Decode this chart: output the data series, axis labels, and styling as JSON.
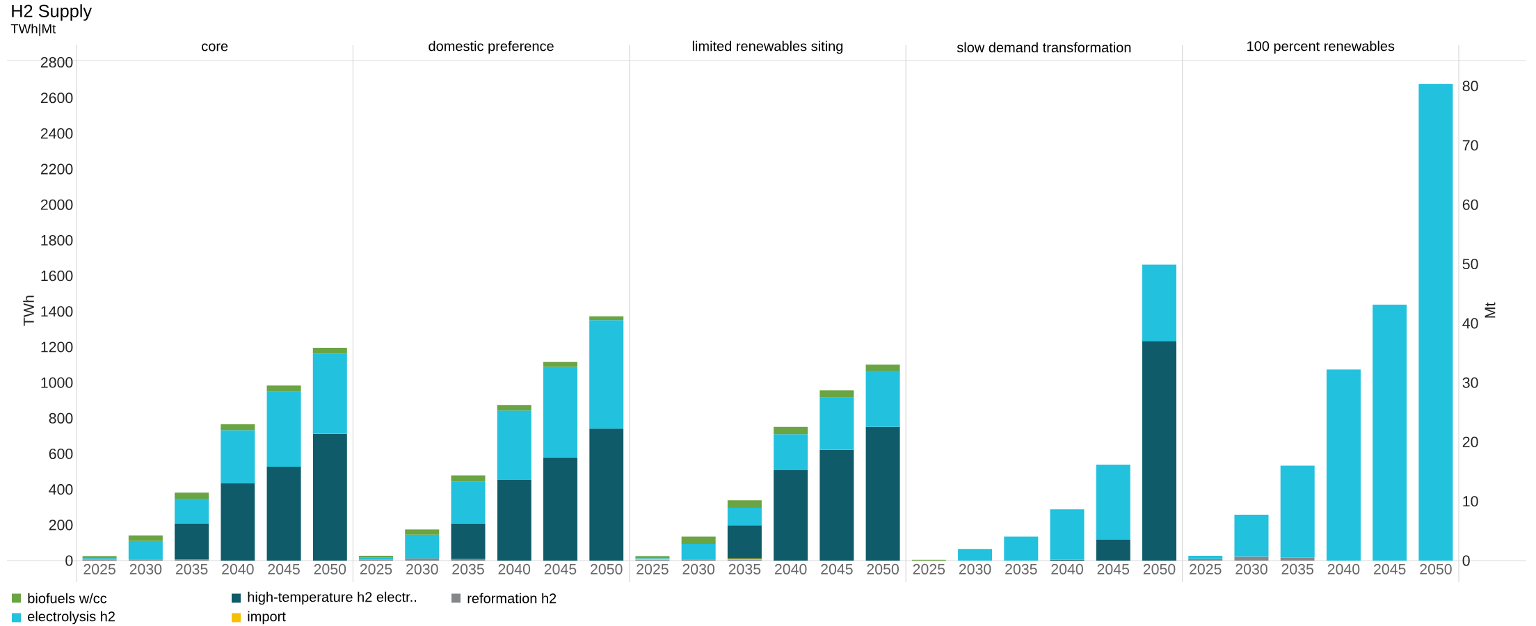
{
  "chart_data": [
    {
      "type": "bar",
      "stacked": true,
      "title": "core",
      "annotations": [
        "H2 Supply",
        "TWh|Mt"
      ],
      "ylabel": "TWh",
      "categories": [
        "2025",
        "2030",
        "2035",
        "2040",
        "2045",
        "2050"
      ],
      "ylim": [
        0,
        2810
      ],
      "yticks": [
        0,
        200,
        400,
        600,
        800,
        1000,
        1200,
        1400,
        1600,
        1800,
        2000,
        2200,
        2400,
        2600,
        2800
      ],
      "legend": "bottom",
      "series": [
        {
          "name": "reformation h2",
          "color": "#85878a",
          "values": [
            5,
            7,
            7,
            0,
            0,
            0
          ]
        },
        {
          "name": "import",
          "color": "#f5c000",
          "values": [
            0,
            0,
            0,
            0,
            0,
            0
          ]
        },
        {
          "name": "high-temperature h2 electr..",
          "color": "#0f5b69",
          "values": [
            0,
            0,
            200,
            436,
            528,
            712
          ]
        },
        {
          "name": "electrolysis h2",
          "color": "#22c1de",
          "values": [
            10,
            103,
            141,
            297,
            423,
            452
          ]
        },
        {
          "name": "biofuels w/cc",
          "color": "#6aa443",
          "values": [
            10,
            32,
            34,
            33,
            33,
            32
          ]
        }
      ]
    },
    {
      "type": "bar",
      "stacked": true,
      "title": "domestic preference",
      "categories": [
        "2025",
        "2030",
        "2035",
        "2040",
        "2045",
        "2050"
      ],
      "ylim": [
        0,
        2810
      ],
      "tick_labels": "x",
      "series": [
        {
          "color": "#85878a",
          "values": [
            5,
            13,
            9,
            0,
            0,
            0
          ]
        },
        {
          "color": "#f5c000",
          "values": [
            0,
            0,
            0,
            0,
            0,
            0
          ]
        },
        {
          "color": "#0f5b69",
          "values": [
            0,
            0,
            200,
            456,
            580,
            742
          ]
        },
        {
          "color": "#22c1de",
          "values": [
            12,
            133,
            236,
            387,
            508,
            609
          ]
        },
        {
          "color": "#6aa443",
          "values": [
            10,
            29,
            34,
            31,
            29,
            22
          ]
        }
      ]
    },
    {
      "type": "bar",
      "stacked": true,
      "title": "limited renewables siting",
      "categories": [
        "2025",
        "2030",
        "2035",
        "2040",
        "2045",
        "2050"
      ],
      "ylim": [
        0,
        2810
      ],
      "tick_labels": "x",
      "series": [
        {
          "color": "#85878a",
          "values": [
            5,
            7,
            4,
            0,
            0,
            0
          ]
        },
        {
          "color": "#f5c000",
          "values": [
            5,
            0,
            8,
            0,
            0,
            0
          ]
        },
        {
          "color": "#0f5b69",
          "values": [
            0,
            0,
            186,
            508,
            622,
            751
          ]
        },
        {
          "color": "#22c1de",
          "values": [
            5,
            87,
            99,
            202,
            293,
            316
          ]
        },
        {
          "color": "#6aa443",
          "values": [
            10,
            41,
            42,
            41,
            42,
            34
          ]
        }
      ]
    },
    {
      "type": "bar",
      "stacked": true,
      "title": "slow demand transformation",
      "categories": [
        "2025",
        "2030",
        "2035",
        "2040",
        "2045",
        "2050"
      ],
      "ylim": [
        0,
        2810
      ],
      "tick_labels": "x",
      "series": [
        {
          "color": "#85878a",
          "values": [
            0,
            0,
            0,
            0,
            0,
            0
          ]
        },
        {
          "color": "#f5c000",
          "values": [
            0,
            0,
            0,
            0,
            0,
            0
          ]
        },
        {
          "color": "#0f5b69",
          "values": [
            0,
            0,
            0,
            5,
            117,
            1234
          ]
        },
        {
          "color": "#22c1de",
          "values": [
            0,
            65,
            135,
            283,
            422,
            429
          ]
        },
        {
          "color": "#6aa443",
          "values": [
            5,
            0,
            0,
            0,
            0,
            0
          ]
        }
      ]
    },
    {
      "type": "bar",
      "stacked": true,
      "title": "100 percent renewables",
      "categories": [
        "2025",
        "2030",
        "2035",
        "2040",
        "2045",
        "2050"
      ],
      "ylim": [
        0,
        2810
      ],
      "tick_labels": [
        "x",
        "y2"
      ],
      "y2label": "Mt",
      "y2lim": [
        0,
        84.3
      ],
      "y2ticks": [
        0,
        10,
        20,
        30,
        40,
        50,
        60,
        70,
        80
      ],
      "series": [
        {
          "color": "#85878a",
          "values": [
            10,
            22,
            18,
            0,
            0,
            0
          ]
        },
        {
          "color": "#f5c000",
          "values": [
            0,
            0,
            0,
            0,
            0,
            0
          ]
        },
        {
          "color": "#0f5b69",
          "values": [
            0,
            0,
            0,
            0,
            0,
            0
          ]
        },
        {
          "color": "#22c1de",
          "values": [
            17,
            236,
            515,
            1074,
            1438,
            2679
          ]
        },
        {
          "color": "#6aa443",
          "values": [
            0,
            0,
            0,
            0,
            0,
            0
          ]
        }
      ]
    }
  ]
}
